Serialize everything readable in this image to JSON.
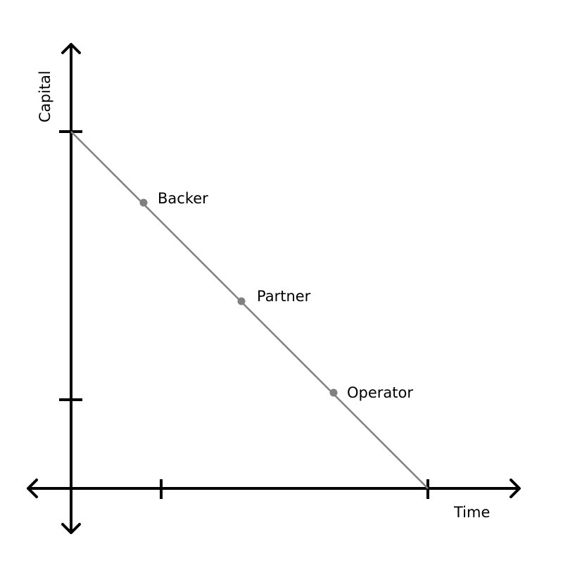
{
  "axes": {
    "x_label": "Time",
    "y_label": "Capital"
  },
  "points": [
    {
      "label": "Backer"
    },
    {
      "label": "Partner"
    },
    {
      "label": "Operator"
    }
  ],
  "colors": {
    "axis": "#000000",
    "line": "#808080"
  }
}
